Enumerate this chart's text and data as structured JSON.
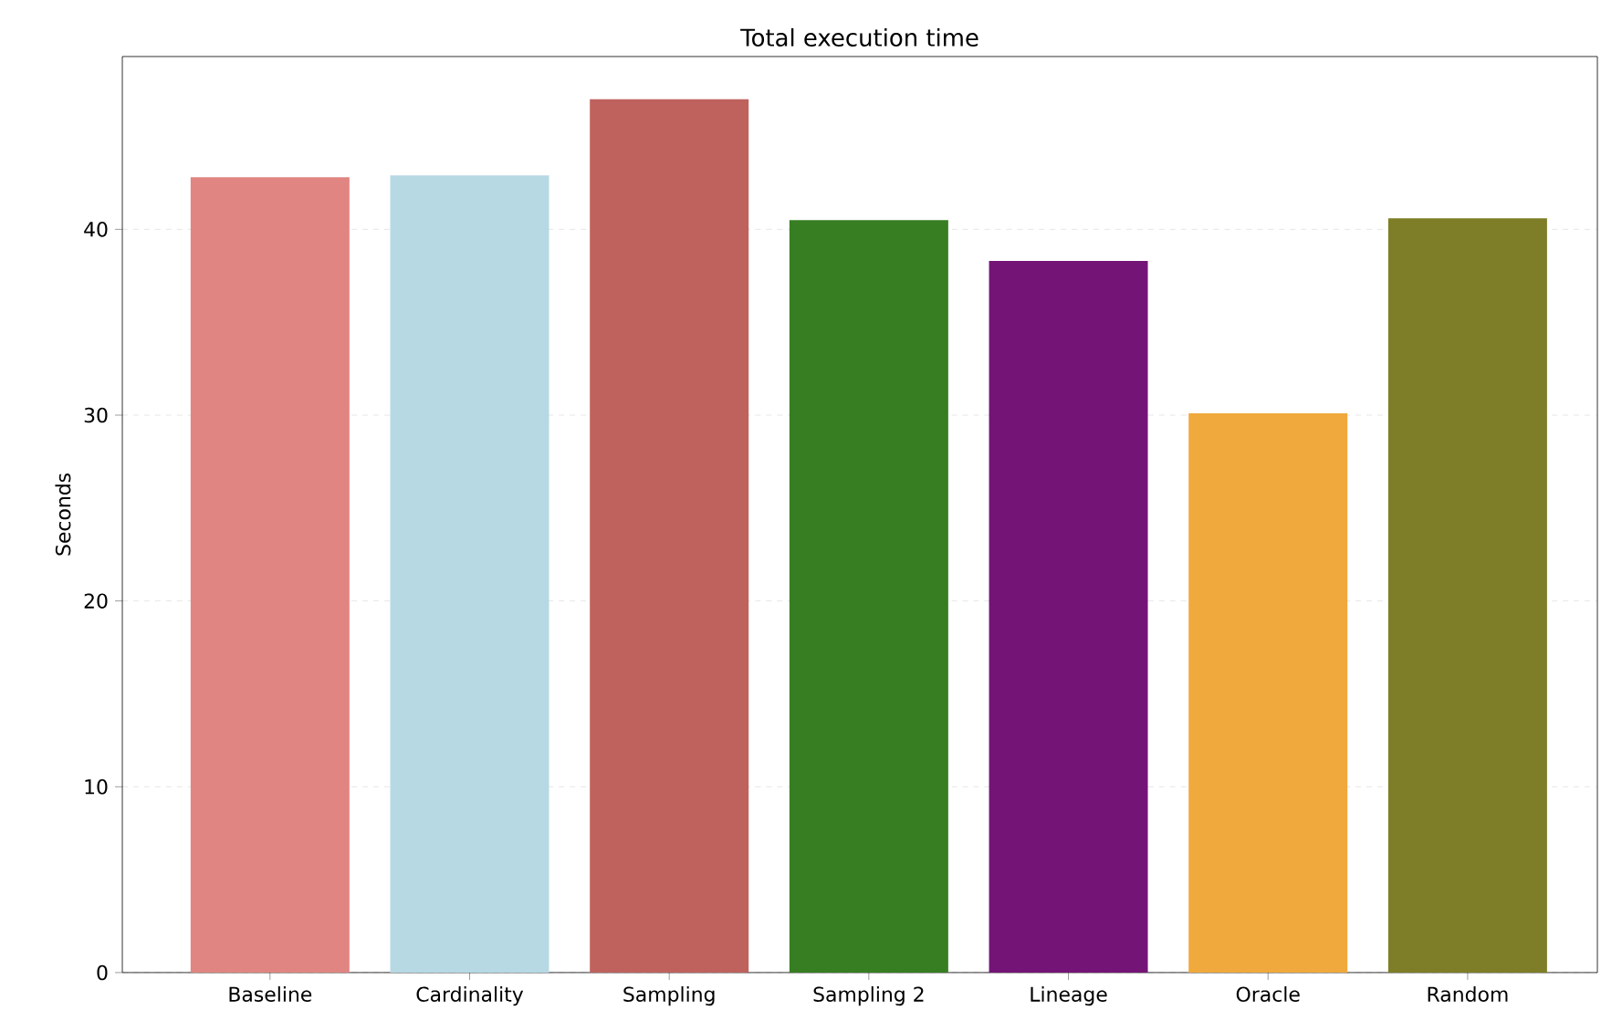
{
  "chart_data": {
    "type": "bar",
    "title": "Total execution time",
    "ylabel": "Seconds",
    "categories": [
      "Baseline",
      "Cardinality",
      "Sampling",
      "Sampling 2",
      "Lineage",
      "Oracle",
      "Random"
    ],
    "values": [
      42.8,
      42.9,
      47.0,
      40.5,
      38.3,
      30.1,
      40.6
    ],
    "colors": [
      "#e08582",
      "#b7d9e4",
      "#bf625e",
      "#377e22",
      "#741476",
      "#f0a93c",
      "#7e7e28"
    ],
    "ylim": [
      0,
      49.3
    ],
    "yticks": [
      0,
      10,
      20,
      30,
      40
    ],
    "grid": "y"
  }
}
